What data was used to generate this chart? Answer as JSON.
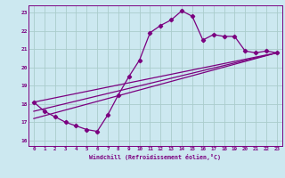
{
  "xlabel": "Windchill (Refroidissement éolien,°C)",
  "bg_color": "#cce8f0",
  "grid_color": "#aacccc",
  "line_color": "#7b0080",
  "xlim": [
    -0.5,
    23.5
  ],
  "ylim": [
    15.7,
    23.4
  ],
  "xticks": [
    0,
    1,
    2,
    3,
    4,
    5,
    6,
    7,
    8,
    9,
    10,
    11,
    12,
    13,
    14,
    15,
    16,
    17,
    18,
    19,
    20,
    21,
    22,
    23
  ],
  "yticks": [
    16,
    17,
    18,
    19,
    20,
    21,
    22,
    23
  ],
  "series1_x": [
    0,
    1,
    2,
    3,
    4,
    5,
    6,
    7,
    8,
    9,
    10,
    11,
    12,
    13,
    14,
    15,
    16,
    17,
    18,
    19,
    20,
    21,
    22,
    23
  ],
  "series1_y": [
    18.1,
    17.6,
    17.3,
    17.0,
    16.8,
    16.6,
    16.5,
    17.4,
    18.5,
    19.5,
    20.4,
    21.9,
    22.3,
    22.6,
    23.1,
    22.8,
    21.5,
    21.8,
    21.7,
    21.7,
    20.9,
    20.8,
    20.9,
    20.8
  ],
  "series2_x": [
    0,
    23
  ],
  "series2_y": [
    17.2,
    20.8
  ],
  "series3_x": [
    0,
    23
  ],
  "series3_y": [
    17.6,
    20.8
  ],
  "series4_x": [
    0,
    23
  ],
  "series4_y": [
    18.1,
    20.8
  ]
}
